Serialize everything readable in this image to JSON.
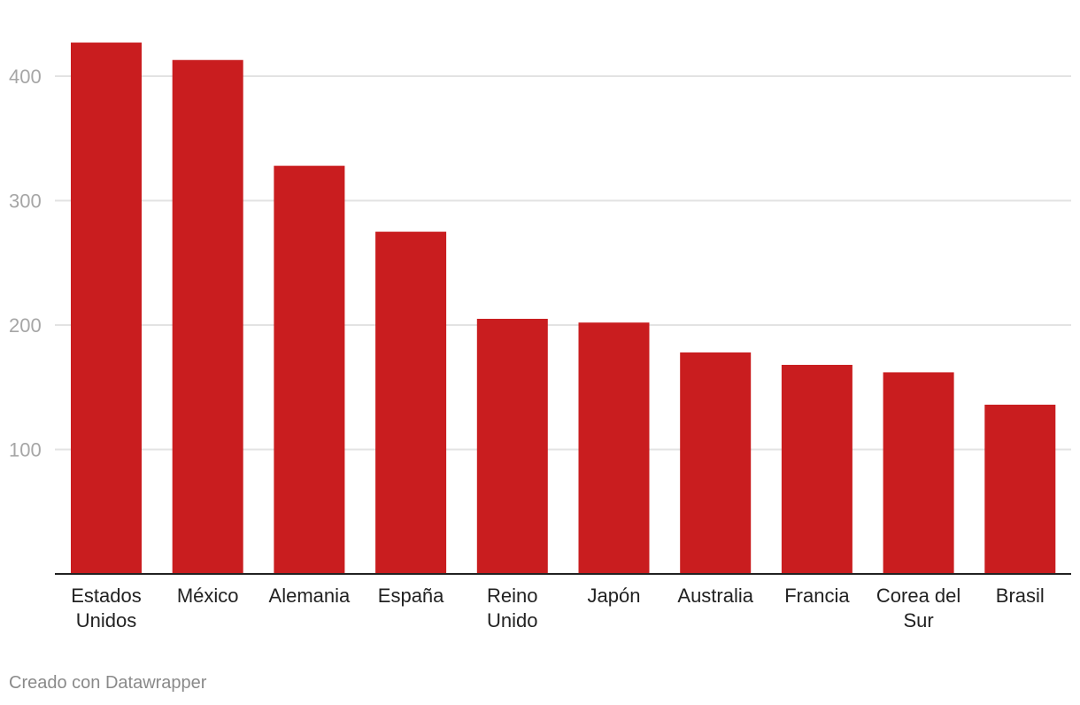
{
  "chart_data": {
    "type": "bar",
    "title": "",
    "xlabel": "",
    "ylabel": "",
    "categories": [
      [
        "Estados",
        "Unidos"
      ],
      [
        "México"
      ],
      [
        "Alemania"
      ],
      [
        "España"
      ],
      [
        "Reino",
        "Unido"
      ],
      [
        "Japón"
      ],
      [
        "Australia"
      ],
      [
        "Francia"
      ],
      [
        "Corea del",
        "Sur"
      ],
      [
        "Brasil"
      ]
    ],
    "values": [
      427,
      413,
      328,
      275,
      205,
      202,
      178,
      168,
      162,
      136
    ],
    "ylim": [
      0,
      430
    ],
    "yticks": [
      100,
      200,
      300,
      400
    ],
    "grid": true,
    "colors": {
      "bar": "#c91d1f",
      "grid": "#e3e3e3",
      "axis": "#222222",
      "tick": "#a6a6a6"
    }
  },
  "footer": {
    "credit": "Creado con Datawrapper"
  }
}
